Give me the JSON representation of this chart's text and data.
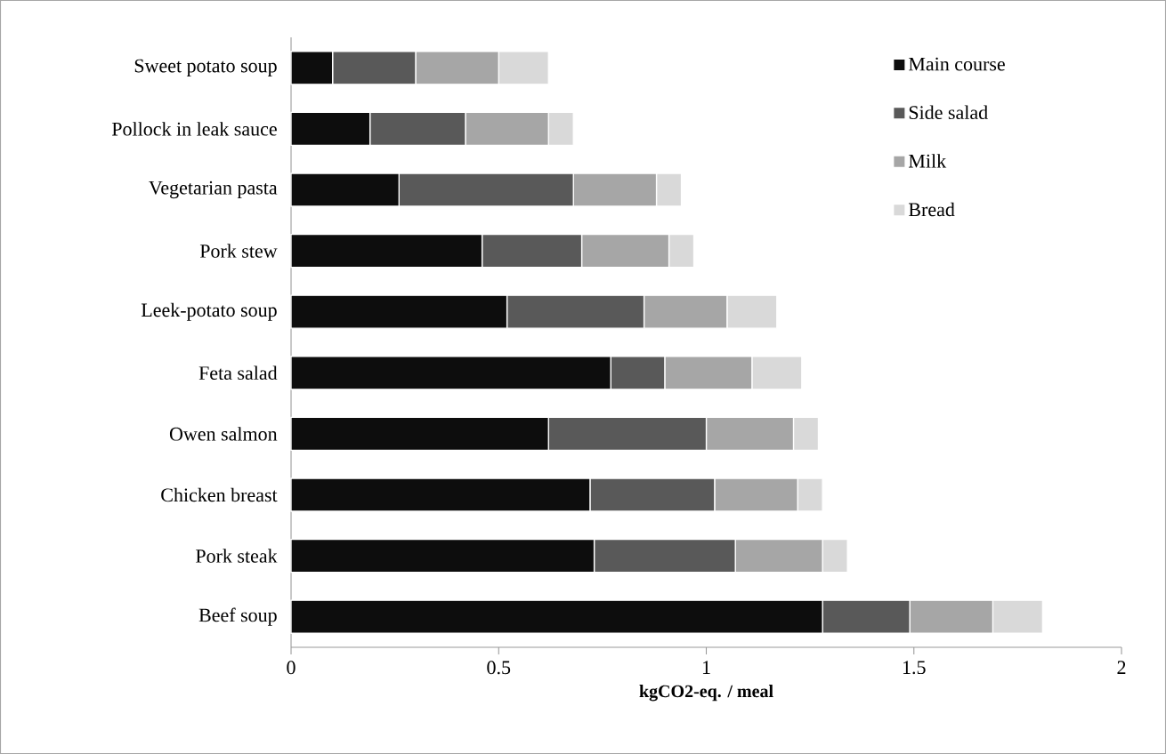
{
  "chart_data": {
    "type": "bar",
    "orientation": "horizontal",
    "stacked": true,
    "categories": [
      "Sweet potato soup",
      "Pollock in leak sauce",
      "Vegetarian pasta",
      "Pork stew",
      "Leek-potato soup",
      "Feta salad",
      "Owen salmon",
      "Chicken breast",
      "Pork steak",
      "Beef soup"
    ],
    "series": [
      {
        "name": "Main course",
        "color": "#0d0d0d",
        "values": [
          0.1,
          0.19,
          0.26,
          0.46,
          0.52,
          0.77,
          0.62,
          0.72,
          0.73,
          1.28
        ]
      },
      {
        "name": "Side salad",
        "color": "#595959",
        "values": [
          0.2,
          0.23,
          0.42,
          0.24,
          0.33,
          0.13,
          0.38,
          0.3,
          0.34,
          0.21
        ]
      },
      {
        "name": "Milk",
        "color": "#a6a6a6",
        "values": [
          0.2,
          0.2,
          0.2,
          0.21,
          0.2,
          0.21,
          0.21,
          0.2,
          0.21,
          0.2
        ]
      },
      {
        "name": "Bread",
        "color": "#d9d9d9",
        "values": [
          0.12,
          0.06,
          0.06,
          0.06,
          0.12,
          0.12,
          0.06,
          0.06,
          0.06,
          0.12
        ]
      }
    ],
    "xlim": [
      0,
      2
    ],
    "xticks": [
      0,
      0.5,
      1,
      1.5,
      2
    ],
    "xlabel": "kgCO2-eq. / meal",
    "legend": "top right"
  }
}
